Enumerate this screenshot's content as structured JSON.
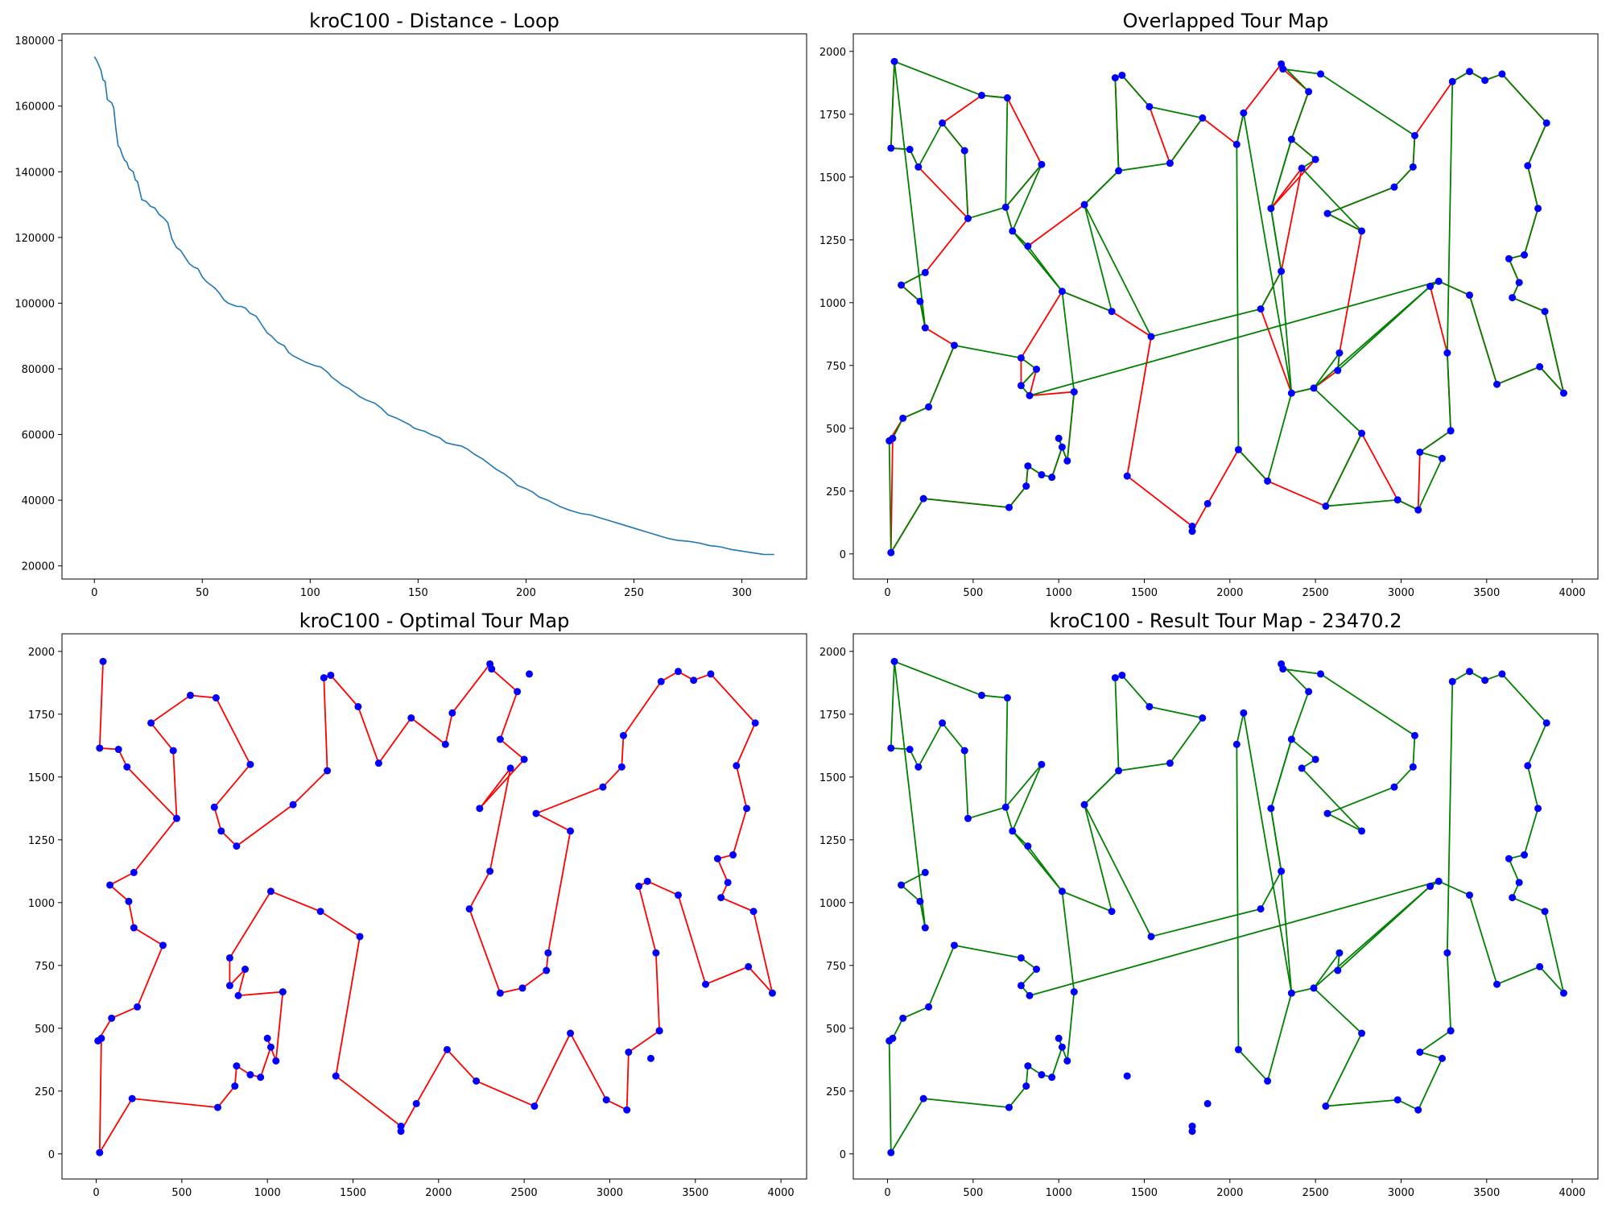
{
  "chart_data": [
    {
      "type": "line",
      "title": "kroC100 - Distance - Loop",
      "xlabel": "",
      "ylabel": "",
      "xlim": [
        -15,
        330
      ],
      "ylim": [
        16000,
        182000
      ],
      "xticks": [
        0,
        50,
        100,
        150,
        200,
        250,
        300
      ],
      "yticks": [
        20000,
        40000,
        60000,
        80000,
        100000,
        120000,
        140000,
        160000,
        180000
      ],
      "series": [
        {
          "color": "#1f77b4",
          "x": [
            0,
            1,
            2,
            3,
            4,
            5,
            6,
            7,
            8,
            9,
            10,
            11,
            12,
            13,
            14,
            15,
            16,
            17,
            18,
            19,
            20,
            22,
            24,
            26,
            28,
            30,
            32,
            34,
            36,
            38,
            40,
            42,
            44,
            46,
            48,
            50,
            52,
            54,
            56,
            58,
            60,
            62,
            64,
            66,
            68,
            70,
            72,
            75,
            78,
            80,
            82,
            85,
            88,
            90,
            92,
            95,
            98,
            100,
            102,
            105,
            108,
            110,
            112,
            115,
            118,
            120,
            123,
            126,
            130,
            133,
            136,
            140,
            143,
            146,
            148,
            150,
            153,
            156,
            160,
            163,
            166,
            170,
            173,
            176,
            180,
            183,
            186,
            190,
            193,
            196,
            200,
            203,
            206,
            210,
            213,
            216,
            220,
            225,
            230,
            235,
            240,
            245,
            250,
            255,
            260,
            265,
            270,
            275,
            280,
            285,
            290,
            295,
            300,
            305,
            310,
            315
          ],
          "y": [
            175000,
            174000,
            172500,
            171000,
            168000,
            167500,
            162000,
            161500,
            161000,
            159500,
            153000,
            148000,
            147000,
            145000,
            143500,
            143000,
            141000,
            140500,
            140000,
            137500,
            137000,
            131500,
            131000,
            129500,
            129000,
            127000,
            126000,
            124500,
            119500,
            117000,
            116000,
            114000,
            112000,
            111000,
            110500,
            108000,
            106500,
            105500,
            104500,
            103000,
            101000,
            100000,
            99500,
            99000,
            99000,
            98500,
            97000,
            96000,
            93000,
            91000,
            90000,
            88000,
            87000,
            85000,
            84000,
            83000,
            82000,
            81500,
            81000,
            80500,
            79000,
            77500,
            76500,
            75000,
            74000,
            73000,
            71500,
            70500,
            69500,
            68000,
            66000,
            65000,
            64000,
            63000,
            62000,
            61500,
            61000,
            60000,
            59000,
            57500,
            57000,
            56500,
            55500,
            54000,
            52500,
            51000,
            49500,
            48000,
            46500,
            44500,
            43500,
            42500,
            41000,
            40000,
            39000,
            38000,
            37000,
            36000,
            35500,
            34500,
            33500,
            32500,
            31500,
            30500,
            29500,
            28500,
            27800,
            27500,
            27000,
            26200,
            25800,
            25000,
            24500,
            24000,
            23500,
            23470
          ]
        }
      ]
    },
    {
      "type": "scatter",
      "title": "Overlapped Tour Map",
      "xlabel": "",
      "ylabel": "",
      "xlim": [
        -200,
        4150
      ],
      "ylim": [
        -100,
        2070
      ],
      "xticks": [
        0,
        500,
        1000,
        1500,
        2000,
        2500,
        3000,
        3500,
        4000
      ],
      "yticks": [
        0,
        250,
        500,
        750,
        1000,
        1250,
        1500,
        1750,
        2000
      ],
      "point_color": "#0000ff",
      "tour_colors": {
        "optimal": "#ff0000",
        "result": "#008000"
      },
      "layer_order": [
        "optimal",
        "result",
        "points"
      ]
    },
    {
      "type": "scatter",
      "title": "kroC100 - Optimal Tour Map",
      "xlabel": "",
      "ylabel": "",
      "xlim": [
        -200,
        4150
      ],
      "ylim": [
        -100,
        2070
      ],
      "xticks": [
        0,
        500,
        1000,
        1500,
        2000,
        2500,
        3000,
        3500,
        4000
      ],
      "yticks": [
        0,
        250,
        500,
        750,
        1000,
        1250,
        1500,
        1750,
        2000
      ],
      "point_color": "#0000ff",
      "tour_colors": {
        "optimal": "#ff0000"
      },
      "layer_order": [
        "optimal",
        "points"
      ]
    },
    {
      "type": "scatter",
      "title": "kroC100 - Result Tour Map - 23470.2",
      "xlabel": "",
      "ylabel": "",
      "xlim": [
        -200,
        4150
      ],
      "ylim": [
        -100,
        2070
      ],
      "xticks": [
        0,
        500,
        1000,
        1500,
        2000,
        2500,
        3000,
        3500,
        4000
      ],
      "yticks": [
        0,
        250,
        500,
        750,
        1000,
        1250,
        1500,
        1750,
        2000
      ],
      "point_color": "#0000ff",
      "tour_colors": {
        "result": "#008000"
      },
      "layer_order": [
        "result",
        "points"
      ]
    }
  ],
  "cities": [
    [
      40,
      1960
    ],
    [
      20,
      1615
    ],
    [
      130,
      1610
    ],
    [
      180,
      1540
    ],
    [
      320,
      1715
    ],
    [
      450,
      1605
    ],
    [
      470,
      1335
    ],
    [
      550,
      1825
    ],
    [
      700,
      1815
    ],
    [
      690,
      1380
    ],
    [
      900,
      1550
    ],
    [
      730,
      1285
    ],
    [
      820,
      1225
    ],
    [
      1150,
      1390
    ],
    [
      1350,
      1525
    ],
    [
      1330,
      1895
    ],
    [
      1370,
      1905
    ],
    [
      1530,
      1780
    ],
    [
      1650,
      1555
    ],
    [
      1840,
      1735
    ],
    [
      2040,
      1630
    ],
    [
      2080,
      1755
    ],
    [
      2300,
      1950
    ],
    [
      2310,
      1930
    ],
    [
      2530,
      1910
    ],
    [
      2460,
      1840
    ],
    [
      2360,
      1650
    ],
    [
      2420,
      1535
    ],
    [
      2500,
      1570
    ],
    [
      2240,
      1375
    ],
    [
      2300,
      1125
    ],
    [
      2180,
      975
    ],
    [
      2570,
      1355
    ],
    [
      2770,
      1285
    ],
    [
      2960,
      1460
    ],
    [
      3070,
      1540
    ],
    [
      3080,
      1665
    ],
    [
      3300,
      1880
    ],
    [
      3400,
      1920
    ],
    [
      3490,
      1885
    ],
    [
      3590,
      1910
    ],
    [
      3850,
      1715
    ],
    [
      3740,
      1545
    ],
    [
      3800,
      1375
    ],
    [
      3720,
      1190
    ],
    [
      3630,
      1175
    ],
    [
      3690,
      1080
    ],
    [
      3650,
      1020
    ],
    [
      3840,
      965
    ],
    [
      3950,
      640
    ],
    [
      3810,
      745
    ],
    [
      3560,
      675
    ],
    [
      3400,
      1030
    ],
    [
      3220,
      1085
    ],
    [
      3170,
      1065
    ],
    [
      3270,
      800
    ],
    [
      3290,
      490
    ],
    [
      3290,
      490
    ],
    [
      3110,
      405
    ],
    [
      3240,
      380
    ],
    [
      3100,
      175
    ],
    [
      2980,
      215
    ],
    [
      2770,
      480
    ],
    [
      2560,
      190
    ],
    [
      2220,
      290
    ],
    [
      2050,
      415
    ],
    [
      1870,
      200
    ],
    [
      1780,
      90
    ],
    [
      1780,
      110
    ],
    [
      1400,
      310
    ],
    [
      1540,
      865
    ],
    [
      1310,
      965
    ],
    [
      1020,
      1045
    ],
    [
      1090,
      645
    ],
    [
      1050,
      370
    ],
    [
      1020,
      425
    ],
    [
      1000,
      460
    ],
    [
      960,
      305
    ],
    [
      900,
      315
    ],
    [
      820,
      350
    ],
    [
      810,
      270
    ],
    [
      710,
      185
    ],
    [
      210,
      220
    ],
    [
      20,
      5
    ],
    [
      30,
      460
    ],
    [
      10,
      450
    ],
    [
      90,
      540
    ],
    [
      240,
      585
    ],
    [
      390,
      830
    ],
    [
      220,
      900
    ],
    [
      190,
      1005
    ],
    [
      80,
      1070
    ],
    [
      220,
      1120
    ],
    [
      780,
      780
    ],
    [
      870,
      735
    ],
    [
      780,
      670
    ],
    [
      830,
      630
    ],
    [
      2360,
      640
    ],
    [
      2490,
      660
    ],
    [
      2630,
      730
    ],
    [
      2640,
      800
    ]
  ],
  "optimal_tour": [
    0,
    1,
    2,
    3,
    6,
    5,
    4,
    7,
    8,
    10,
    9,
    11,
    12,
    13,
    14,
    15,
    16,
    17,
    18,
    19,
    20,
    21,
    22,
    23,
    25,
    26,
    28,
    29,
    27,
    30,
    31,
    97,
    98,
    99,
    100,
    33,
    32,
    34,
    35,
    36,
    37,
    38,
    39,
    40,
    41,
    42,
    43,
    44,
    45,
    46,
    47,
    48,
    49,
    50,
    51,
    52,
    53,
    54,
    55,
    57,
    58,
    60,
    61,
    62,
    63,
    64,
    65,
    66,
    67,
    68,
    69,
    70,
    71,
    72,
    93,
    95,
    94,
    96,
    73,
    74,
    76,
    75,
    77,
    78,
    79,
    80,
    81,
    82,
    83,
    84,
    85,
    86,
    87,
    88,
    89,
    90,
    91,
    92,
    6
  ],
  "result_tour": [
    0,
    1,
    2,
    3,
    4,
    5,
    6,
    9,
    10,
    11,
    12,
    72,
    71,
    13,
    14,
    15,
    16,
    17,
    19,
    18,
    14,
    13,
    70,
    31,
    30,
    29,
    26,
    25,
    22,
    23,
    24,
    36,
    35,
    34,
    32,
    33,
    27,
    28,
    26,
    29,
    30,
    97,
    21,
    20,
    65,
    64,
    97,
    98,
    100,
    99,
    54,
    53,
    52,
    51,
    50,
    49,
    48,
    47,
    46,
    45,
    44,
    43,
    42,
    41,
    40,
    39,
    38,
    37,
    55,
    57,
    58,
    59,
    60,
    61,
    63,
    62,
    98,
    54,
    53,
    96,
    95,
    94,
    93,
    88,
    87,
    86,
    84,
    85,
    83,
    82,
    81,
    80,
    79,
    78,
    77,
    75,
    76,
    74,
    73,
    72,
    11,
    9,
    8,
    7,
    0,
    89,
    90,
    91,
    92
  ]
}
